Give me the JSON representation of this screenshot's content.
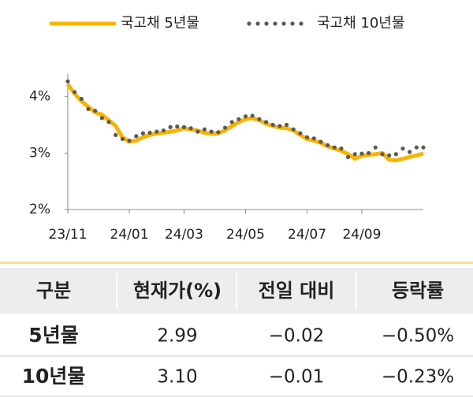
{
  "chart_data": {
    "type": "line",
    "categories": [
      "23/11",
      null,
      null,
      null,
      null,
      null,
      null,
      null,
      null,
      "24/01",
      null,
      null,
      null,
      null,
      null,
      null,
      null,
      "24/03",
      null,
      null,
      null,
      null,
      null,
      null,
      null,
      null,
      "24/05",
      null,
      null,
      null,
      null,
      null,
      null,
      null,
      null,
      "24/07",
      null,
      null,
      null,
      null,
      null,
      null,
      null,
      "24/09",
      null,
      null,
      null,
      null,
      null,
      null,
      null,
      null,
      null
    ],
    "series": [
      {
        "name": "국고채 5년물",
        "color": "#f7b500",
        "style": "solid",
        "values": [
          4.22,
          4.05,
          3.92,
          3.82,
          3.72,
          3.68,
          3.58,
          3.48,
          3.28,
          3.2,
          3.22,
          3.28,
          3.32,
          3.35,
          3.36,
          3.38,
          3.4,
          3.44,
          3.42,
          3.4,
          3.36,
          3.34,
          3.35,
          3.4,
          3.48,
          3.55,
          3.6,
          3.62,
          3.58,
          3.52,
          3.48,
          3.45,
          3.44,
          3.4,
          3.32,
          3.25,
          3.22,
          3.18,
          3.12,
          3.08,
          3.04,
          2.98,
          2.9,
          2.95,
          2.97,
          2.98,
          3.0,
          2.88,
          2.87,
          2.9,
          2.93,
          2.96,
          2.99
        ]
      },
      {
        "name": "국고채 10년물",
        "color": "#595959",
        "style": "dotted",
        "values": [
          4.27,
          4.08,
          3.96,
          3.78,
          3.75,
          3.62,
          3.55,
          3.32,
          3.25,
          3.22,
          3.3,
          3.35,
          3.36,
          3.38,
          3.4,
          3.46,
          3.47,
          3.46,
          3.44,
          3.38,
          3.42,
          3.38,
          3.37,
          3.45,
          3.55,
          3.6,
          3.65,
          3.66,
          3.6,
          3.55,
          3.5,
          3.48,
          3.5,
          3.42,
          3.35,
          3.28,
          3.26,
          3.2,
          3.14,
          3.1,
          3.08,
          2.93,
          2.98,
          2.99,
          3.0,
          3.1,
          2.98,
          2.96,
          2.98,
          3.08,
          3.02,
          3.1,
          3.1
        ]
      }
    ],
    "ylim": [
      2,
      4.4
    ],
    "yticks": [
      {
        "value": 2,
        "label": "2%"
      },
      {
        "value": 3,
        "label": "3%"
      },
      {
        "value": 4,
        "label": "4%"
      }
    ]
  },
  "table": {
    "header": [
      "구분",
      "현재가(%)",
      "전일 대비",
      "등락률"
    ],
    "rows": [
      [
        "5년물",
        "2.99",
        "−0.02",
        "−0.50%"
      ],
      [
        "10년물",
        "3.10",
        "−0.01",
        "−0.23%"
      ]
    ]
  }
}
